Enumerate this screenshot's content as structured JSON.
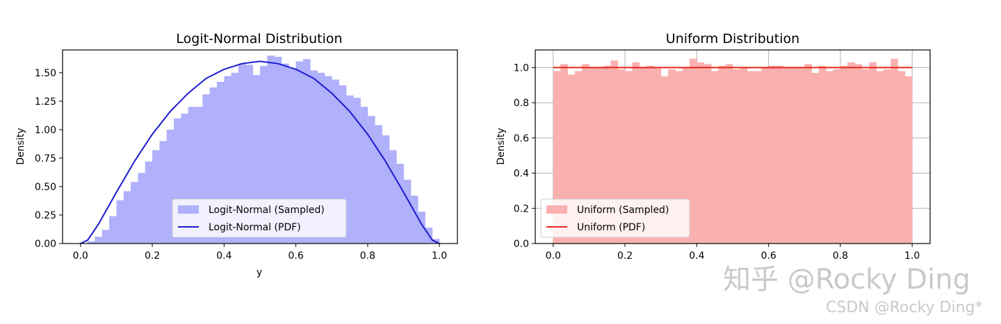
{
  "chart_data": [
    {
      "type": "histogram+line",
      "title": "Logit-Normal Distribution",
      "xlabel": "y",
      "ylabel": "Density",
      "xlim": [
        -0.05,
        1.05
      ],
      "ylim": [
        0,
        1.7
      ],
      "xticks": [
        "0.0",
        "0.2",
        "0.4",
        "0.6",
        "0.8",
        "1.0"
      ],
      "yticks": [
        "0.00",
        "0.25",
        "0.50",
        "0.75",
        "1.00",
        "1.25",
        "1.50"
      ],
      "grid": false,
      "legend_position": "lower center",
      "bin_edges_start": 0.0,
      "bin_width": 0.02,
      "series": [
        {
          "name": "Logit-Normal (Sampled)",
          "kind": "histogram",
          "color": "#b0b0fb",
          "values": [
            0.0,
            0.02,
            0.06,
            0.12,
            0.24,
            0.38,
            0.46,
            0.54,
            0.62,
            0.72,
            0.82,
            0.9,
            1.0,
            1.1,
            1.14,
            1.2,
            1.2,
            1.31,
            1.37,
            1.42,
            1.47,
            1.5,
            1.58,
            1.57,
            1.48,
            1.56,
            1.65,
            1.64,
            1.58,
            1.54,
            1.6,
            1.62,
            1.52,
            1.5,
            1.47,
            1.44,
            1.39,
            1.3,
            1.28,
            1.2,
            1.12,
            1.04,
            0.95,
            0.82,
            0.7,
            0.56,
            0.42,
            0.28,
            0.14,
            0.04
          ]
        },
        {
          "name": "Logit-Normal (PDF)",
          "kind": "line",
          "color": "#1a1acf",
          "x": [
            0.0,
            0.02,
            0.05,
            0.1,
            0.15,
            0.2,
            0.25,
            0.3,
            0.35,
            0.4,
            0.45,
            0.5,
            0.55,
            0.6,
            0.65,
            0.7,
            0.75,
            0.8,
            0.85,
            0.9,
            0.95,
            0.98,
            1.0
          ],
          "y": [
            0.0,
            0.03,
            0.17,
            0.45,
            0.72,
            0.96,
            1.16,
            1.32,
            1.45,
            1.53,
            1.58,
            1.6,
            1.58,
            1.53,
            1.45,
            1.32,
            1.16,
            0.96,
            0.72,
            0.45,
            0.17,
            0.03,
            0.0
          ]
        }
      ]
    },
    {
      "type": "histogram+line",
      "title": "Uniform Distribution",
      "xlabel": "",
      "ylabel": "Density",
      "xlim": [
        -0.05,
        1.05
      ],
      "ylim": [
        0,
        1.1
      ],
      "xticks": [
        "0.0",
        "0.2",
        "0.4",
        "0.6",
        "0.8",
        "1.0"
      ],
      "yticks": [
        "0.0",
        "0.2",
        "0.4",
        "0.6",
        "0.8",
        "1.0"
      ],
      "grid": true,
      "legend_position": "lower left",
      "bin_edges_start": 0.0,
      "bin_width": 0.02,
      "series": [
        {
          "name": "Uniform (Sampled)",
          "kind": "histogram",
          "color": "#fbb0b0",
          "values": [
            0.98,
            1.02,
            0.96,
            0.98,
            1.02,
            1.0,
            1.0,
            1.01,
            1.04,
            0.99,
            0.98,
            1.03,
            1.0,
            1.01,
            1.0,
            0.95,
            0.99,
            0.98,
            1.0,
            1.05,
            1.03,
            1.02,
            0.98,
            1.01,
            1.02,
            0.99,
            1.0,
            0.98,
            0.98,
            1.0,
            1.01,
            1.01,
            1.0,
            1.0,
            1.0,
            1.02,
            0.97,
            1.01,
            0.98,
            0.99,
            1.01,
            1.03,
            1.02,
            0.99,
            1.03,
            0.98,
            0.99,
            1.05,
            0.98,
            0.95
          ]
        },
        {
          "name": "Uniform (PDF)",
          "kind": "line",
          "color": "#e8271a",
          "x": [
            0.0,
            1.0
          ],
          "y": [
            1.0,
            1.0
          ]
        }
      ]
    }
  ],
  "watermark": {
    "line1": "知乎 @Rocky Ding",
    "line2": "CSDN @Rocky Ding*"
  }
}
